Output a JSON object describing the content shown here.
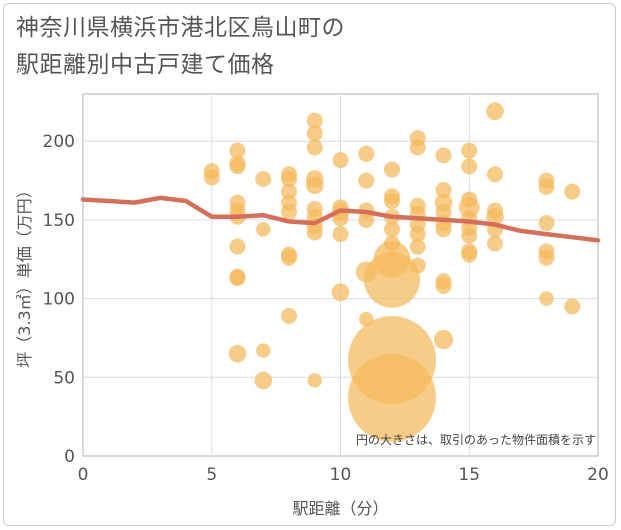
{
  "title": {
    "line1": "神奈川県横浜市港北区鳥山町の",
    "line2": "駅距離別中古戸建て価格"
  },
  "colors": {
    "bubble": "#f4b95a",
    "line": "#d4705a",
    "grid": "#d5dde6",
    "plot_border": "#a9b4bf"
  },
  "chart_data": {
    "type": "scatter",
    "xlabel": "駅距離（分）",
    "ylabel": "坪（3.3㎡）単価（万円）",
    "note": "円の大きさは、取引のあった物件面積を示す",
    "xlim": [
      0,
      20
    ],
    "ylim": [
      0,
      230
    ],
    "xticks": [
      0,
      5,
      10,
      15,
      20
    ],
    "yticks": [
      0,
      50,
      100,
      150,
      200
    ],
    "grid": true,
    "trend": {
      "x": [
        0,
        1,
        2,
        3,
        4,
        5,
        6,
        7,
        8,
        9,
        10,
        11,
        12,
        13,
        14,
        15,
        16,
        17,
        18,
        19,
        20
      ],
      "y": [
        163,
        162,
        161,
        164,
        162,
        152,
        152,
        153,
        149,
        148,
        156,
        155,
        152,
        151,
        150,
        149,
        147,
        143,
        141,
        139,
        137
      ]
    },
    "points": [
      {
        "x": 5,
        "y": 181,
        "s": 1
      },
      {
        "x": 5,
        "y": 177,
        "s": 1
      },
      {
        "x": 6,
        "y": 194,
        "s": 1
      },
      {
        "x": 6,
        "y": 186,
        "s": 1
      },
      {
        "x": 6,
        "y": 184,
        "s": 1
      },
      {
        "x": 6,
        "y": 161,
        "s": 1
      },
      {
        "x": 6,
        "y": 156,
        "s": 1
      },
      {
        "x": 6,
        "y": 152,
        "s": 1
      },
      {
        "x": 6,
        "y": 133,
        "s": 1
      },
      {
        "x": 6,
        "y": 114,
        "s": 1
      },
      {
        "x": 6,
        "y": 113,
        "s": 1
      },
      {
        "x": 6,
        "y": 65,
        "s": 1.1
      },
      {
        "x": 7,
        "y": 176,
        "s": 1
      },
      {
        "x": 7,
        "y": 144,
        "s": 0.9
      },
      {
        "x": 7,
        "y": 67,
        "s": 0.9
      },
      {
        "x": 7,
        "y": 48,
        "s": 1.1
      },
      {
        "x": 8,
        "y": 179,
        "s": 1
      },
      {
        "x": 8,
        "y": 176,
        "s": 1
      },
      {
        "x": 8,
        "y": 168,
        "s": 1
      },
      {
        "x": 8,
        "y": 161,
        "s": 1
      },
      {
        "x": 8,
        "y": 155,
        "s": 1
      },
      {
        "x": 8,
        "y": 128,
        "s": 1
      },
      {
        "x": 8,
        "y": 126,
        "s": 1
      },
      {
        "x": 8,
        "y": 89,
        "s": 1
      },
      {
        "x": 9,
        "y": 213,
        "s": 1
      },
      {
        "x": 9,
        "y": 205,
        "s": 1
      },
      {
        "x": 9,
        "y": 196,
        "s": 1
      },
      {
        "x": 9,
        "y": 176,
        "s": 1.1
      },
      {
        "x": 9,
        "y": 172,
        "s": 1.1
      },
      {
        "x": 9,
        "y": 157,
        "s": 1
      },
      {
        "x": 9,
        "y": 152,
        "s": 1
      },
      {
        "x": 9,
        "y": 146,
        "s": 1
      },
      {
        "x": 9,
        "y": 142,
        "s": 1
      },
      {
        "x": 9,
        "y": 48,
        "s": 0.9
      },
      {
        "x": 10,
        "y": 188,
        "s": 1
      },
      {
        "x": 10,
        "y": 158,
        "s": 1
      },
      {
        "x": 10,
        "y": 155,
        "s": 1.1
      },
      {
        "x": 10,
        "y": 151,
        "s": 1
      },
      {
        "x": 10,
        "y": 141,
        "s": 1
      },
      {
        "x": 10,
        "y": 104,
        "s": 1.1
      },
      {
        "x": 11,
        "y": 192,
        "s": 1
      },
      {
        "x": 11,
        "y": 175,
        "s": 1
      },
      {
        "x": 11,
        "y": 156,
        "s": 1
      },
      {
        "x": 11,
        "y": 150,
        "s": 1
      },
      {
        "x": 11,
        "y": 117,
        "s": 1.3
      },
      {
        "x": 11,
        "y": 87,
        "s": 0.9
      },
      {
        "x": 12,
        "y": 182,
        "s": 1
      },
      {
        "x": 12,
        "y": 165,
        "s": 1
      },
      {
        "x": 12,
        "y": 162,
        "s": 1
      },
      {
        "x": 12,
        "y": 152,
        "s": 1
      },
      {
        "x": 12,
        "y": 144,
        "s": 1
      },
      {
        "x": 12,
        "y": 135,
        "s": 1
      },
      {
        "x": 12,
        "y": 125,
        "s": 2.3
      },
      {
        "x": 12,
        "y": 112,
        "s": 3.5
      },
      {
        "x": 12,
        "y": 61,
        "s": 5.5
      },
      {
        "x": 12,
        "y": 37,
        "s": 5.5
      },
      {
        "x": 13,
        "y": 202,
        "s": 1
      },
      {
        "x": 13,
        "y": 196,
        "s": 1
      },
      {
        "x": 13,
        "y": 159,
        "s": 1
      },
      {
        "x": 13,
        "y": 154,
        "s": 1
      },
      {
        "x": 13,
        "y": 147,
        "s": 1
      },
      {
        "x": 13,
        "y": 141,
        "s": 1
      },
      {
        "x": 13,
        "y": 133,
        "s": 1
      },
      {
        "x": 13,
        "y": 121,
        "s": 1
      },
      {
        "x": 14,
        "y": 191,
        "s": 1
      },
      {
        "x": 14,
        "y": 169,
        "s": 1
      },
      {
        "x": 14,
        "y": 161,
        "s": 1.1
      },
      {
        "x": 14,
        "y": 155,
        "s": 1
      },
      {
        "x": 14,
        "y": 148,
        "s": 1
      },
      {
        "x": 14,
        "y": 144,
        "s": 1
      },
      {
        "x": 14,
        "y": 111,
        "s": 1
      },
      {
        "x": 14,
        "y": 108,
        "s": 1
      },
      {
        "x": 14,
        "y": 74,
        "s": 1.2
      },
      {
        "x": 15,
        "y": 194,
        "s": 1
      },
      {
        "x": 15,
        "y": 184,
        "s": 1
      },
      {
        "x": 15,
        "y": 163,
        "s": 1
      },
      {
        "x": 15,
        "y": 158,
        "s": 1.3
      },
      {
        "x": 15,
        "y": 151,
        "s": 1
      },
      {
        "x": 15,
        "y": 145,
        "s": 1
      },
      {
        "x": 15,
        "y": 140,
        "s": 1
      },
      {
        "x": 15,
        "y": 130,
        "s": 1
      },
      {
        "x": 15,
        "y": 128,
        "s": 1
      },
      {
        "x": 16,
        "y": 219,
        "s": 1.1
      },
      {
        "x": 16,
        "y": 179,
        "s": 1
      },
      {
        "x": 16,
        "y": 156,
        "s": 1
      },
      {
        "x": 16,
        "y": 152,
        "s": 1.1
      },
      {
        "x": 16,
        "y": 144,
        "s": 1
      },
      {
        "x": 16,
        "y": 135,
        "s": 1
      },
      {
        "x": 18,
        "y": 175,
        "s": 1
      },
      {
        "x": 18,
        "y": 171,
        "s": 1
      },
      {
        "x": 18,
        "y": 148,
        "s": 1
      },
      {
        "x": 18,
        "y": 130,
        "s": 1
      },
      {
        "x": 18,
        "y": 126,
        "s": 1
      },
      {
        "x": 18,
        "y": 100,
        "s": 0.9
      },
      {
        "x": 19,
        "y": 168,
        "s": 1
      },
      {
        "x": 19,
        "y": 95,
        "s": 1
      }
    ]
  }
}
